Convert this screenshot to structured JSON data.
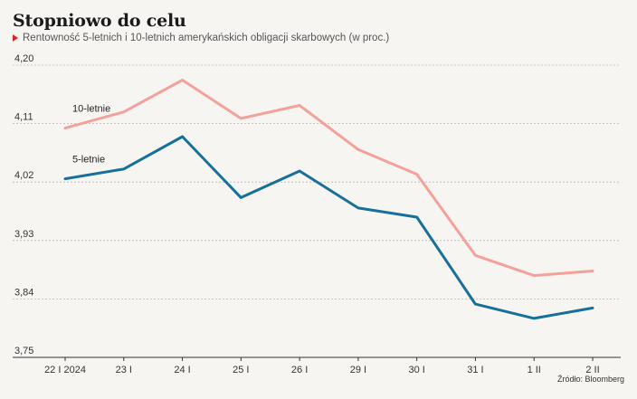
{
  "header": {
    "title": "Stopniowo do celu",
    "subtitle": "Rentowność 5-letnich i 10-letnich amerykańskich obligacji skarbowych (w proc.)"
  },
  "source": "Źródło: Bloomberg",
  "chart_data": {
    "type": "line",
    "title": "Stopniowo do celu",
    "subtitle": "Rentowność 5-letnich i 10-letnich amerykańskich obligacji skarbowych (w proc.)",
    "xlabel": "",
    "ylabel": "",
    "categories": [
      "22 I 2024",
      "23 I",
      "24 I",
      "25 I",
      "26 I",
      "29 I",
      "30 I",
      "31 I",
      "1 II",
      "2 II"
    ],
    "yticks": [
      "4,20",
      "4,11",
      "4,02",
      "3,93",
      "3,84",
      "3,75"
    ],
    "ylim": [
      3.75,
      4.2
    ],
    "grid": true,
    "series": [
      {
        "name": "10-letnie",
        "color": "#f4a09b",
        "values": [
          4.103,
          4.128,
          4.177,
          4.118,
          4.138,
          4.07,
          4.032,
          3.907,
          3.876,
          3.883
        ]
      },
      {
        "name": "5-letnie",
        "color": "#17709a",
        "values": [
          4.025,
          4.04,
          4.09,
          3.996,
          4.037,
          3.98,
          3.966,
          3.832,
          3.81,
          3.826
        ]
      }
    ]
  }
}
